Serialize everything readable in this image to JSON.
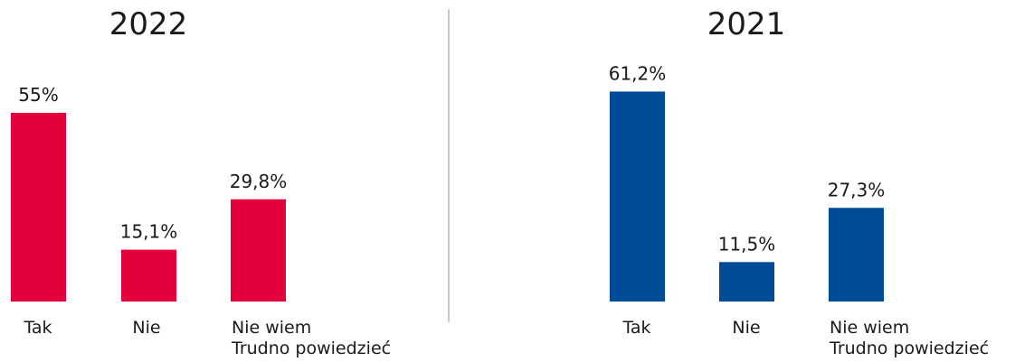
{
  "chart_data": [
    {
      "type": "bar",
      "title": "2022",
      "categories": [
        "Tak",
        "Nie",
        "Nie wiem\nTrudno powiedzieć"
      ],
      "values": [
        55,
        15.1,
        29.8
      ],
      "value_labels": [
        "55%",
        "15,1%",
        "29,8%"
      ],
      "color": "#e4003b",
      "ylim": [
        0,
        70
      ],
      "grid": false
    },
    {
      "type": "bar",
      "title": "2021",
      "categories": [
        "Tak",
        "Nie",
        "Nie wiem\nTrudno powiedzieć"
      ],
      "values": [
        61.2,
        11.5,
        27.3
      ],
      "value_labels": [
        "61,2%",
        "11,5%",
        "27,3%"
      ],
      "color": "#004b98",
      "ylim": [
        0,
        70
      ],
      "grid": false
    }
  ]
}
